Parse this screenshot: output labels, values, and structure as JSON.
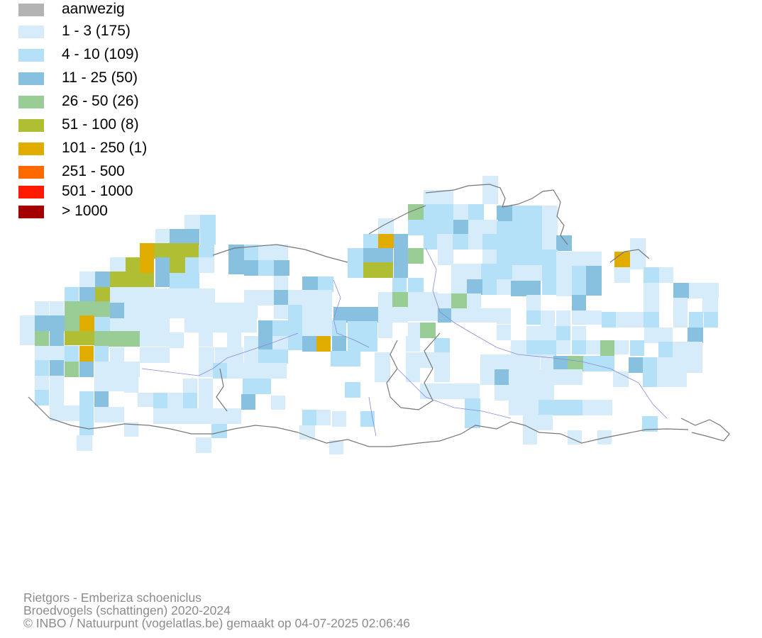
{
  "legend": [
    {
      "label": "aanwezig",
      "color": "#b3b3b3"
    },
    {
      "label": "1 - 3 (175)",
      "color": "#d7ecfa"
    },
    {
      "label": "4 - 10 (109)",
      "color": "#b4e0f8"
    },
    {
      "label": "11 - 25 (50)",
      "color": "#88c1df"
    },
    {
      "label": "26 - 50 (26)",
      "color": "#9acd96"
    },
    {
      "label": "51 - 100 (8)",
      "color": "#b0be33"
    },
    {
      "label": "101 - 250 (1)",
      "color": "#e0ac00"
    },
    {
      "label": "251 - 500",
      "color": "#ff6a00"
    },
    {
      "label": "501 - 1000",
      "color": "#ff1a00"
    },
    {
      "label": "> 1000",
      "color": "#a50000"
    }
  ],
  "credits": {
    "line1": "Rietgors - Emberiza schoeniclus",
    "line2": "Broedvogels (schattingen) 2020-2024",
    "line3": "© INBO / Natuurpunt (vogelatlas.be) gemaakt op 04-07-2025 02:06:46"
  },
  "map": {
    "border_color": "#777777",
    "river_color": "#8888dd"
  }
}
